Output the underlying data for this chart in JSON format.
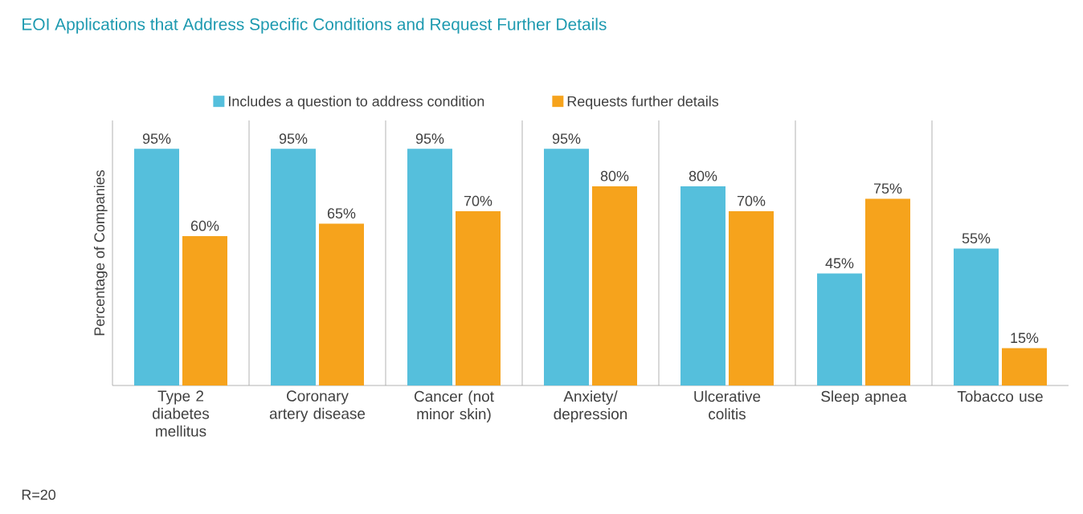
{
  "chart_data": {
    "type": "bar",
    "title": "EOI Applications that Address Specific Conditions and Request Further Details",
    "ylabel": "Percentage of Companies",
    "categories": [
      "Type 2 diabetes mellitus",
      "Coronary artery disease",
      "Cancer (not minor skin)",
      "Anxiety/ depression",
      "Ulcerative colitis",
      "Sleep apnea",
      "Tobacco use"
    ],
    "series": [
      {
        "name": "Includes a question to address condition",
        "color": "#55bfdc",
        "values": [
          95,
          95,
          95,
          95,
          80,
          45,
          55
        ],
        "value_labels": [
          "95%",
          "95%",
          "95%",
          "95%",
          "80%",
          "45%",
          "55%"
        ]
      },
      {
        "name": "Requests further details",
        "color": "#f6a31c",
        "values": [
          60,
          65,
          70,
          80,
          70,
          75,
          15
        ],
        "value_labels": [
          "60%",
          "65%",
          "70%",
          "80%",
          "70%",
          "75%",
          "15%"
        ]
      }
    ],
    "legend": "top",
    "annotations": [
      "R=20"
    ]
  }
}
